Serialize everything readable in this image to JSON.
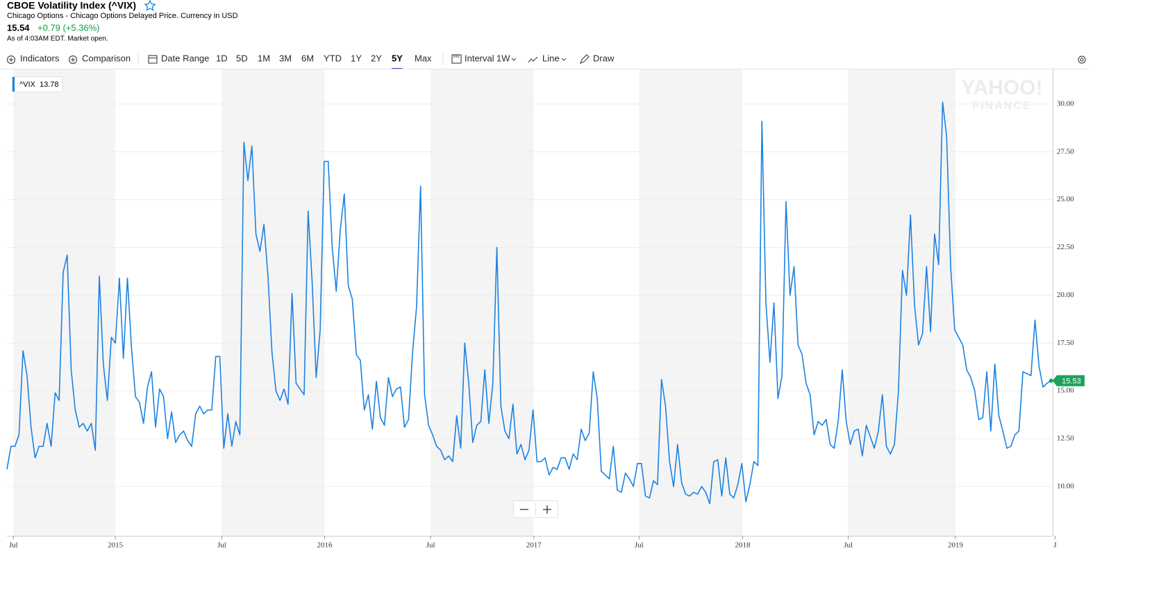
{
  "header": {
    "title": "CBOE Volatility Index (^VIX)",
    "subtitle": "Chicago Options - Chicago Options Delayed Price. Currency in USD",
    "price": "15.54",
    "change": "+0.79 (+5.36%)",
    "status": "As of 4:03AM EDT. Market open."
  },
  "toolbar": {
    "indicators": "Indicators",
    "comparison": "Comparison",
    "date_range": "Date Range",
    "ranges": [
      "1D",
      "5D",
      "1M",
      "3M",
      "6M",
      "YTD",
      "1Y",
      "2Y",
      "5Y",
      "Max"
    ],
    "active_range": 8,
    "interval": "Interval",
    "interval_value": "1W",
    "chart_style": "Line",
    "draw": "Draw"
  },
  "chart_data": {
    "type": "line",
    "series": [
      {
        "name": "^VIX",
        "color": "#1a82e2",
        "values": [
          10.9,
          12.1,
          12.1,
          12.7,
          17.1,
          15.8,
          13.1,
          11.5,
          12.1,
          12.1,
          13.3,
          12.1,
          14.9,
          14.5,
          21.2,
          22.1,
          16.1,
          14.0,
          13.1,
          13.3,
          12.9,
          13.3,
          11.9,
          21.0,
          16.4,
          14.5,
          17.8,
          17.5,
          20.9,
          16.7,
          20.9,
          17.3,
          14.7,
          14.4,
          13.3,
          15.2,
          16.0,
          13.1,
          15.1,
          14.7,
          12.5,
          13.9,
          12.3,
          12.7,
          12.9,
          12.4,
          12.1,
          13.8,
          14.2,
          13.8,
          14.0,
          14.0,
          16.8,
          16.8,
          12.0,
          13.8,
          12.1,
          13.4,
          12.7,
          28.0,
          26.0,
          27.8,
          23.2,
          22.3,
          23.7,
          21.0,
          17.0,
          15.0,
          14.5,
          15.1,
          14.3,
          20.1,
          15.4,
          15.1,
          14.8,
          24.4,
          20.7,
          15.7,
          18.2,
          27.0,
          27.0,
          22.5,
          20.2,
          23.4,
          25.3,
          20.5,
          19.8,
          16.9,
          16.6,
          14.0,
          14.8,
          13.0,
          15.5,
          13.6,
          13.2,
          15.7,
          14.7,
          15.1,
          15.2,
          13.1,
          13.5,
          17.0,
          19.4,
          25.7,
          14.8,
          13.2,
          12.7,
          12.1,
          11.9,
          11.4,
          11.6,
          11.3,
          13.7,
          12.0,
          17.5,
          15.4,
          12.3,
          13.2,
          13.4,
          16.1,
          13.3,
          15.4,
          22.5,
          14.2,
          12.9,
          12.5,
          14.3,
          11.7,
          12.2,
          11.4,
          11.9,
          14.0,
          11.3,
          11.3,
          11.5,
          10.6,
          11.0,
          10.9,
          11.5,
          11.5,
          10.9,
          11.7,
          11.4,
          13.0,
          12.4,
          12.8,
          16.0,
          14.6,
          10.8,
          10.6,
          10.4,
          12.1,
          9.8,
          9.7,
          10.7,
          10.4,
          10.0,
          11.2,
          11.2,
          9.5,
          9.4,
          10.3,
          10.1,
          15.6,
          14.2,
          11.3,
          10.0,
          12.2,
          10.2,
          9.6,
          9.5,
          9.7,
          9.6,
          10.0,
          9.7,
          9.1,
          11.3,
          11.4,
          9.5,
          11.5,
          9.6,
          9.4,
          10.1,
          11.2,
          9.2,
          10.1,
          11.3,
          11.1,
          29.1,
          19.6,
          16.5,
          19.6,
          14.6,
          15.8,
          24.9,
          20.0,
          21.5,
          17.4,
          16.9,
          15.4,
          14.8,
          12.7,
          13.4,
          13.2,
          13.5,
          12.2,
          12.0,
          13.4,
          16.1,
          13.4,
          12.2,
          12.9,
          13.0,
          11.6,
          13.2,
          12.6,
          12.0,
          12.9,
          14.8,
          12.1,
          11.7,
          12.2,
          15.0,
          21.3,
          20.0,
          24.2,
          19.5,
          17.4,
          18.0,
          21.5,
          18.1,
          23.2,
          21.6,
          30.1,
          28.3,
          21.5,
          18.2,
          17.8,
          17.4,
          16.1,
          15.7,
          15.0,
          13.5,
          13.6,
          16.0,
          12.9,
          16.4,
          13.7,
          12.9,
          12.0,
          12.1,
          12.7,
          12.9,
          16.0,
          15.9,
          15.8,
          18.7,
          16.3,
          15.2,
          15.4,
          15.53
        ]
      }
    ],
    "legend_value": 13.78,
    "xlim": [
      0,
      260.4
    ],
    "xticks": [
      {
        "value": 1.6,
        "label": "Jul"
      },
      {
        "value": 27.0,
        "label": "2015"
      },
      {
        "value": 53.5,
        "label": "Jul"
      },
      {
        "value": 79.1,
        "label": "2016"
      },
      {
        "value": 105.5,
        "label": "Jul"
      },
      {
        "value": 131.2,
        "label": "2017"
      },
      {
        "value": 157.4,
        "label": "Jul"
      },
      {
        "value": 183.2,
        "label": "2018"
      },
      {
        "value": 209.5,
        "label": "Jul"
      },
      {
        "value": 236.2,
        "label": "2019"
      },
      {
        "value": 261.0,
        "label": "J"
      }
    ],
    "ylim": [
      7.42,
      31.81
    ],
    "yticks": [
      {
        "value": 10,
        "label": "10.00"
      },
      {
        "value": 12.5,
        "label": "12.50"
      },
      {
        "value": 15,
        "label": "15.00"
      },
      {
        "value": 17.5,
        "label": "17.50"
      },
      {
        "value": 20,
        "label": "20.00"
      },
      {
        "value": 22.5,
        "label": "22.50"
      },
      {
        "value": 25,
        "label": "25.00"
      },
      {
        "value": 27.5,
        "label": "27.50"
      },
      {
        "value": 30,
        "label": "30.00"
      }
    ],
    "grid": true,
    "watermark": [
      "YAHOO!",
      "FINANCE"
    ]
  }
}
